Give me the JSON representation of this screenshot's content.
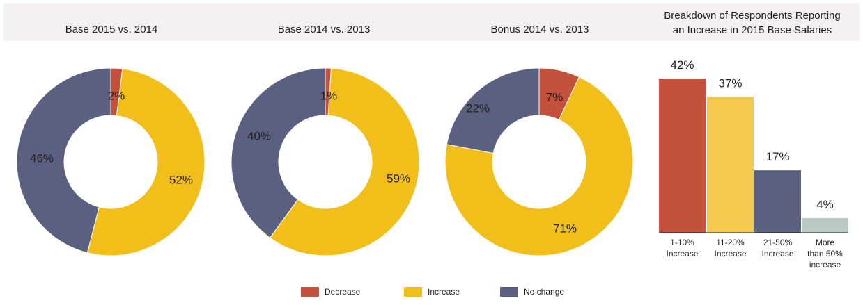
{
  "colors": {
    "decrease": "#c4513b",
    "increase": "#f2bf1a",
    "no_change": "#5c6080",
    "bar_increase_light": "#f2c94c",
    "bar_more_than_50": "#b9cac4"
  },
  "titles": {
    "donut1": "Base 2015 vs. 2014",
    "donut2": "Base 2014 vs. 2013",
    "donut3": "Bonus 2014 vs. 2013",
    "bar_line1": "Breakdown of Respondents Reporting",
    "bar_line2": "an Increase in 2015 Base Salaries"
  },
  "legend": [
    {
      "label": "Decrease",
      "color": "#c4513b"
    },
    {
      "label": "Increase",
      "color": "#f2bf1a"
    },
    {
      "label": "No change",
      "color": "#5c6080"
    }
  ],
  "chart_data": [
    {
      "type": "pie",
      "title": "Base 2015 vs. 2014",
      "slices": [
        {
          "name": "Decrease",
          "value": 2,
          "label": "2%"
        },
        {
          "name": "Increase",
          "value": 52,
          "label": "52%"
        },
        {
          "name": "No change",
          "value": 46,
          "label": "46%"
        }
      ]
    },
    {
      "type": "pie",
      "title": "Base 2014 vs. 2013",
      "slices": [
        {
          "name": "Decrease",
          "value": 1,
          "label": "1%"
        },
        {
          "name": "Increase",
          "value": 59,
          "label": "59%"
        },
        {
          "name": "No change",
          "value": 40,
          "label": "40%"
        }
      ]
    },
    {
      "type": "pie",
      "title": "Bonus 2014 vs. 2013",
      "slices": [
        {
          "name": "Decrease",
          "value": 7,
          "label": "7%"
        },
        {
          "name": "Increase",
          "value": 71,
          "label": "71%"
        },
        {
          "name": "No change",
          "value": 22,
          "label": "22%"
        }
      ]
    },
    {
      "type": "bar",
      "title": "Breakdown of Respondents Reporting an Increase in 2015 Base Salaries",
      "categories": [
        [
          "1-10%",
          "Increase"
        ],
        [
          "11-20%",
          "Increase"
        ],
        [
          "21-50%",
          "Increase"
        ],
        [
          "More",
          "than 50%",
          "increase"
        ]
      ],
      "values": [
        42,
        37,
        17,
        4
      ],
      "labels": [
        "42%",
        "37%",
        "17%",
        "4%"
      ],
      "bar_colors": [
        "#c4513b",
        "#f2c94c",
        "#5c6080",
        "#b9cac4"
      ],
      "ylim": [
        0,
        42
      ]
    }
  ]
}
